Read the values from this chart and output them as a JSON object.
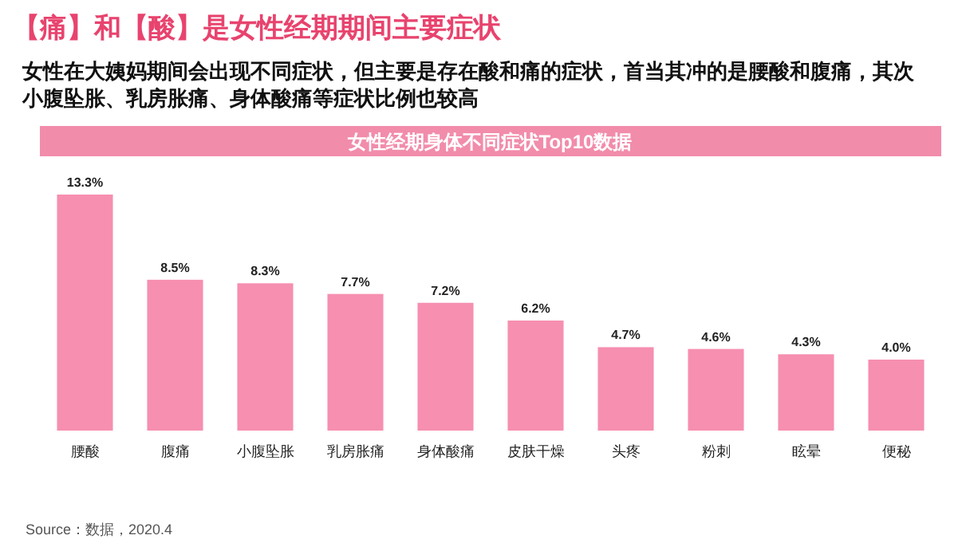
{
  "chart_data": {
    "type": "bar",
    "title": "【痛】和【酸】是女性经期期间主要症状",
    "subtitle": "女性在大姨妈期间会出现不同症状，但主要是存在酸和痛的症状，首当其冲的是腰酸和腹痛，其次小腹坠胀、乳房胀痛、身体酸痛等症状比例也较高",
    "annotations": [
      "女性经期身体不同症状Top10数据",
      "Source：数据，2020.4"
    ],
    "categories": [
      "腰酸",
      "腹痛",
      "小腹坠胀",
      "乳房胀痛",
      "身体酸痛",
      "皮肤干燥",
      "头疼",
      "粉刺",
      "眩晕",
      "便秘"
    ],
    "values": [
      13.3,
      8.5,
      8.3,
      7.7,
      7.2,
      6.2,
      4.7,
      4.6,
      4.3,
      4.0
    ],
    "value_labels": [
      "13.3%",
      "8.5%",
      "8.3%",
      "7.7%",
      "7.2%",
      "6.2%",
      "4.7%",
      "4.6%",
      "4.3%",
      "4.0%"
    ],
    "color": "#f68fb0"
  }
}
